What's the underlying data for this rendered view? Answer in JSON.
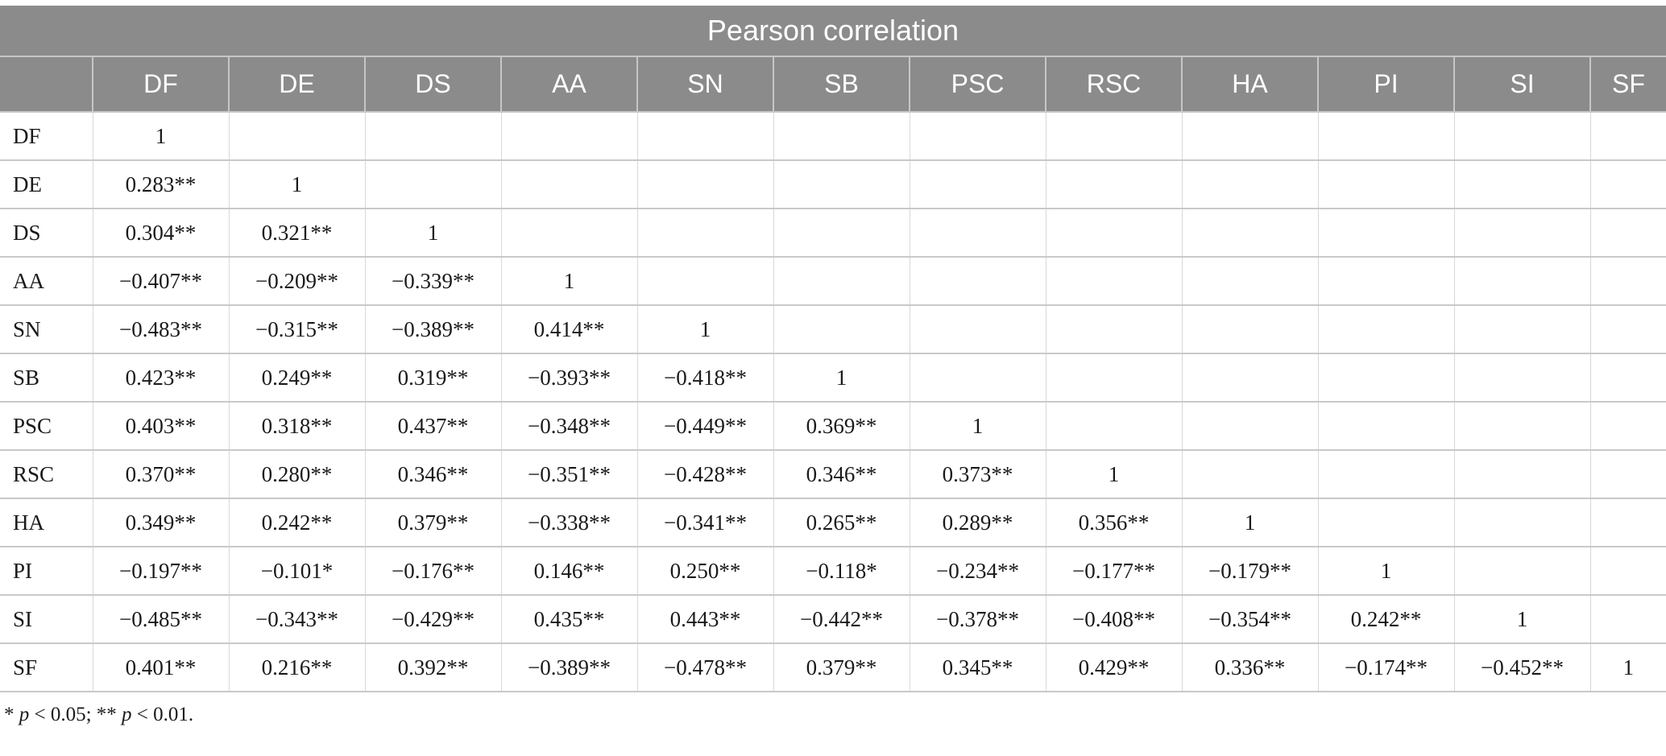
{
  "colors": {
    "header_bg": "#8b8b8b",
    "header_text": "#ffffff",
    "body_text": "#1a1a1a",
    "grid_h": "#c9c9c9",
    "grid_v": "#d8d8d8",
    "header_divider": "#c6c6c6",
    "page_bg": "#ffffff"
  },
  "table": {
    "title": "Pearson correlation",
    "corner_label": "",
    "columns": [
      "DF",
      "DE",
      "DS",
      "AA",
      "SN",
      "SB",
      "PSC",
      "RSC",
      "HA",
      "PI",
      "SI",
      "SF"
    ],
    "rows": [
      {
        "label": "DF",
        "values": [
          "1",
          "",
          "",
          "",
          "",
          "",
          "",
          "",
          "",
          "",
          "",
          ""
        ]
      },
      {
        "label": "DE",
        "values": [
          "0.283**",
          "1",
          "",
          "",
          "",
          "",
          "",
          "",
          "",
          "",
          "",
          ""
        ]
      },
      {
        "label": "DS",
        "values": [
          "0.304**",
          "0.321**",
          "1",
          "",
          "",
          "",
          "",
          "",
          "",
          "",
          "",
          ""
        ]
      },
      {
        "label": "AA",
        "values": [
          "−0.407**",
          "−0.209**",
          "−0.339**",
          "1",
          "",
          "",
          "",
          "",
          "",
          "",
          "",
          ""
        ]
      },
      {
        "label": "SN",
        "values": [
          "−0.483**",
          "−0.315**",
          "−0.389**",
          "0.414**",
          "1",
          "",
          "",
          "",
          "",
          "",
          "",
          ""
        ]
      },
      {
        "label": "SB",
        "values": [
          "0.423**",
          "0.249**",
          "0.319**",
          "−0.393**",
          "−0.418**",
          "1",
          "",
          "",
          "",
          "",
          "",
          ""
        ]
      },
      {
        "label": "PSC",
        "values": [
          "0.403**",
          "0.318**",
          "0.437**",
          "−0.348**",
          "−0.449**",
          "0.369**",
          "1",
          "",
          "",
          "",
          "",
          ""
        ]
      },
      {
        "label": "RSC",
        "values": [
          "0.370**",
          "0.280**",
          "0.346**",
          "−0.351**",
          "−0.428**",
          "0.346**",
          "0.373**",
          "1",
          "",
          "",
          "",
          ""
        ]
      },
      {
        "label": "HA",
        "values": [
          "0.349**",
          "0.242**",
          "0.379**",
          "−0.338**",
          "−0.341**",
          "0.265**",
          "0.289**",
          "0.356**",
          "1",
          "",
          "",
          ""
        ]
      },
      {
        "label": "PI",
        "values": [
          "−0.197**",
          "−0.101*",
          "−0.176**",
          "0.146**",
          "0.250**",
          "−0.118*",
          "−0.234**",
          "−0.177**",
          "−0.179**",
          "1",
          "",
          ""
        ]
      },
      {
        "label": "SI",
        "values": [
          "−0.485**",
          "−0.343**",
          "−0.429**",
          "0.435**",
          "0.443**",
          "−0.442**",
          "−0.378**",
          "−0.408**",
          "−0.354**",
          "0.242**",
          "1",
          ""
        ]
      },
      {
        "label": "SF",
        "values": [
          "0.401**",
          "0.216**",
          "0.392**",
          "−0.389**",
          "−0.478**",
          "0.379**",
          "0.345**",
          "0.429**",
          "0.336**",
          "−0.174**",
          "−0.452**",
          "1"
        ]
      }
    ],
    "footnote_parts": [
      {
        "text": "* "
      },
      {
        "text": "p",
        "italic": true
      },
      {
        "text": " < 0.05; ** "
      },
      {
        "text": "p",
        "italic": true
      },
      {
        "text": " < 0.01."
      }
    ]
  }
}
